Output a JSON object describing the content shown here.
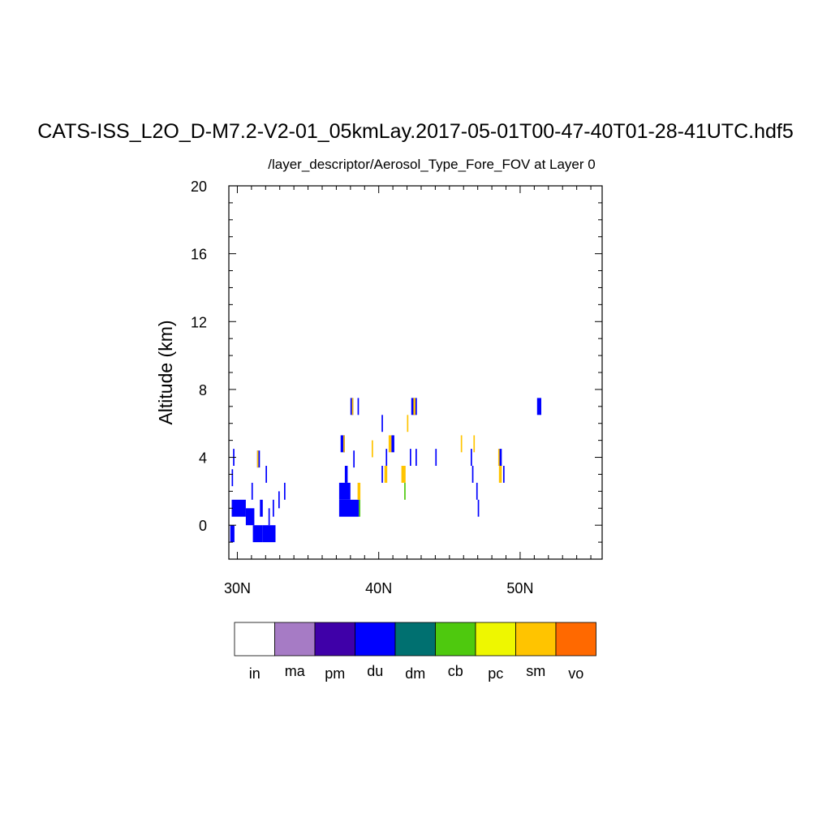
{
  "chart_data": {
    "type": "heatmap",
    "title": "CATS-ISS_L2O_D-M7.2-V2-01_05kmLay.2017-05-01T00-47-40T01-28-41UTC.hdf5",
    "subtitle": "/layer_descriptor/Aerosol_Type_Fore_FOV at Layer 0",
    "ylabel": "Altitude (km)",
    "xlabel": "",
    "xlim": [
      29.4,
      55.8
    ],
    "ylim": [
      -2,
      20
    ],
    "x_ticks": [
      {
        "value": 30.0,
        "label": "30N"
      },
      {
        "value": 40.0,
        "label": "40N"
      },
      {
        "value": 50.0,
        "label": "50N"
      }
    ],
    "y_ticks": [
      0,
      4,
      8,
      12,
      16,
      20
    ],
    "legend": {
      "placement": "bottom",
      "categories": [
        {
          "label": "in",
          "color": "#ffffff"
        },
        {
          "label": "ma",
          "color": "#a67bc5"
        },
        {
          "label": "pm",
          "color": "#3f00a8"
        },
        {
          "label": "du",
          "color": "#0000ff"
        },
        {
          "label": "dm",
          "color": "#007070"
        },
        {
          "label": "cb",
          "color": "#4ec90e"
        },
        {
          "label": "pc",
          "color": "#eef700"
        },
        {
          "label": "sm",
          "color": "#ffc400"
        },
        {
          "label": "vo",
          "color": "#ff6900"
        }
      ]
    },
    "cell_height_km": 1.0,
    "cells": [
      {
        "lat": 29.5,
        "width": 0.3,
        "alt": -0.5,
        "type": "du"
      },
      {
        "lat": 29.6,
        "width": 0.1,
        "alt": 2.8,
        "type": "du"
      },
      {
        "lat": 29.7,
        "width": 0.1,
        "alt": 4.0,
        "type": "du"
      },
      {
        "lat": 29.6,
        "width": 1.0,
        "alt": 1.0,
        "type": "du"
      },
      {
        "lat": 30.6,
        "width": 0.6,
        "alt": 0.5,
        "type": "du"
      },
      {
        "lat": 31.1,
        "width": 0.7,
        "alt": -0.5,
        "type": "du"
      },
      {
        "lat": 31.6,
        "width": 0.2,
        "alt": 1.0,
        "type": "du"
      },
      {
        "lat": 31.8,
        "width": 0.9,
        "alt": -0.5,
        "type": "du"
      },
      {
        "lat": 32.2,
        "width": 0.1,
        "alt": 0.5,
        "type": "du"
      },
      {
        "lat": 32.5,
        "width": 0.1,
        "alt": 1.0,
        "type": "du"
      },
      {
        "lat": 32.9,
        "width": 0.1,
        "alt": 1.5,
        "type": "du"
      },
      {
        "lat": 33.3,
        "width": 0.1,
        "alt": 2.0,
        "type": "du"
      },
      {
        "lat": 31.0,
        "width": 0.1,
        "alt": 2.0,
        "type": "du"
      },
      {
        "lat": 31.4,
        "width": 0.2,
        "alt": 3.9,
        "type": "du"
      },
      {
        "lat": 31.4,
        "width": 0.1,
        "alt": 3.9,
        "type": "sm"
      },
      {
        "lat": 32.0,
        "width": 0.1,
        "alt": 3.0,
        "type": "du"
      },
      {
        "lat": 37.2,
        "width": 0.8,
        "alt": 2.0,
        "type": "du"
      },
      {
        "lat": 37.2,
        "width": 1.4,
        "alt": 1.0,
        "type": "du"
      },
      {
        "lat": 38.5,
        "width": 0.2,
        "alt": 2.0,
        "type": "sm"
      },
      {
        "lat": 38.6,
        "width": 0.1,
        "alt": 1.0,
        "type": "cb"
      },
      {
        "lat": 37.3,
        "width": 0.3,
        "alt": 4.8,
        "type": "du"
      },
      {
        "lat": 37.5,
        "width": 0.1,
        "alt": 4.8,
        "type": "sm"
      },
      {
        "lat": 37.6,
        "width": 0.2,
        "alt": 3.0,
        "type": "du"
      },
      {
        "lat": 38.0,
        "width": 0.2,
        "alt": 7.0,
        "type": "du"
      },
      {
        "lat": 38.1,
        "width": 0.1,
        "alt": 7.0,
        "type": "sm"
      },
      {
        "lat": 38.5,
        "width": 0.1,
        "alt": 7.0,
        "type": "du"
      },
      {
        "lat": 38.2,
        "width": 0.1,
        "alt": 3.9,
        "type": "du"
      },
      {
        "lat": 39.5,
        "width": 0.1,
        "alt": 4.5,
        "type": "sm"
      },
      {
        "lat": 40.2,
        "width": 0.1,
        "alt": 6.0,
        "type": "du"
      },
      {
        "lat": 40.5,
        "width": 0.1,
        "alt": 4.0,
        "type": "du"
      },
      {
        "lat": 40.7,
        "width": 0.2,
        "alt": 4.8,
        "type": "sm"
      },
      {
        "lat": 40.9,
        "width": 0.2,
        "alt": 4.8,
        "type": "du"
      },
      {
        "lat": 40.4,
        "width": 0.2,
        "alt": 3.0,
        "type": "sm"
      },
      {
        "lat": 40.2,
        "width": 0.1,
        "alt": 3.0,
        "type": "du"
      },
      {
        "lat": 41.6,
        "width": 0.3,
        "alt": 3.0,
        "type": "sm"
      },
      {
        "lat": 41.8,
        "width": 0.1,
        "alt": 2.0,
        "type": "cb"
      },
      {
        "lat": 42.2,
        "width": 0.1,
        "alt": 4.0,
        "type": "du"
      },
      {
        "lat": 42.6,
        "width": 0.1,
        "alt": 4.0,
        "type": "du"
      },
      {
        "lat": 42.3,
        "width": 0.3,
        "alt": 7.0,
        "type": "du"
      },
      {
        "lat": 42.45,
        "width": 0.15,
        "alt": 7.0,
        "type": "sm"
      },
      {
        "lat": 42.6,
        "width": 0.1,
        "alt": 7.0,
        "type": "du"
      },
      {
        "lat": 42.0,
        "width": 0.1,
        "alt": 6.0,
        "type": "sm"
      },
      {
        "lat": 44.0,
        "width": 0.1,
        "alt": 4.0,
        "type": "du"
      },
      {
        "lat": 45.8,
        "width": 0.1,
        "alt": 4.8,
        "type": "sm"
      },
      {
        "lat": 46.5,
        "width": 0.1,
        "alt": 4.0,
        "type": "du"
      },
      {
        "lat": 46.6,
        "width": 0.1,
        "alt": 3.0,
        "type": "du"
      },
      {
        "lat": 46.7,
        "width": 0.1,
        "alt": 4.8,
        "type": "sm"
      },
      {
        "lat": 46.9,
        "width": 0.1,
        "alt": 2.0,
        "type": "du"
      },
      {
        "lat": 47.0,
        "width": 0.1,
        "alt": 1.0,
        "type": "du"
      },
      {
        "lat": 48.5,
        "width": 0.2,
        "alt": 4.0,
        "type": "du"
      },
      {
        "lat": 48.45,
        "width": 0.1,
        "alt": 4.0,
        "type": "sm"
      },
      {
        "lat": 48.5,
        "width": 0.2,
        "alt": 3.0,
        "type": "sm"
      },
      {
        "lat": 48.8,
        "width": 0.1,
        "alt": 3.0,
        "type": "du"
      },
      {
        "lat": 51.2,
        "width": 0.3,
        "alt": 7.0,
        "type": "du"
      }
    ]
  }
}
